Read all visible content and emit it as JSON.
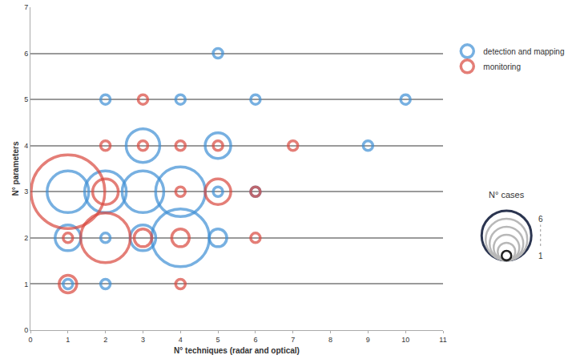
{
  "chart_data": {
    "type": "bubble",
    "x_label": "N° techniques (radar and optical)",
    "y_label": "N° parameters",
    "xlim": [
      0,
      11
    ],
    "xticks": [
      0,
      1,
      2,
      3,
      4,
      5,
      6,
      7,
      8,
      9,
      10,
      11
    ],
    "ylim": [
      0,
      7
    ],
    "yticks": [
      0,
      1,
      2,
      3,
      4,
      5,
      6,
      7
    ],
    "grid": true,
    "legend": "right",
    "marker": "circle-open",
    "series": [
      {
        "name": "detection and mapping",
        "color": "#3d8fd4",
        "x": [
          5,
          2,
          4,
          6,
          10,
          3,
          5,
          9,
          1,
          2,
          3,
          4,
          5,
          6,
          1,
          2,
          3,
          4,
          5,
          1,
          2
        ],
        "y": [
          6,
          5,
          5,
          5,
          5,
          4,
          4,
          4,
          3,
          3,
          3,
          3,
          3,
          3,
          2,
          2,
          2,
          2,
          2,
          1,
          1
        ],
        "cases": [
          1,
          1,
          1,
          1,
          1,
          4,
          3,
          1,
          5,
          5,
          5,
          6,
          1,
          1,
          3,
          1,
          3,
          7,
          2,
          1,
          1
        ]
      },
      {
        "name": "monitoring",
        "color": "#d9473d",
        "x": [
          3,
          2,
          3,
          4,
          5,
          7,
          1,
          2,
          4,
          5,
          6,
          1,
          2,
          3,
          4,
          6,
          1,
          4
        ],
        "y": [
          5,
          4,
          4,
          4,
          4,
          4,
          3,
          3,
          3,
          3,
          3,
          2,
          2,
          2,
          2,
          2,
          1,
          1
        ],
        "cases": [
          1,
          1,
          1,
          1,
          1,
          1,
          9,
          3,
          1,
          3,
          1,
          1,
          6,
          2,
          2,
          1,
          2,
          1
        ]
      }
    ],
    "size_legend": {
      "title": "N° cases",
      "values": [
        1,
        2,
        3,
        4,
        5,
        6
      ],
      "labeled": [
        6,
        1
      ]
    }
  }
}
